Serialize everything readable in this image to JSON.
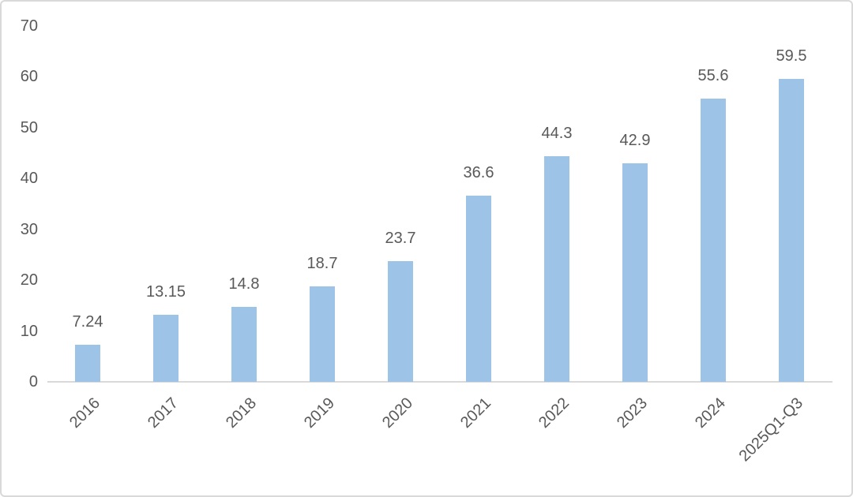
{
  "chart_data": {
    "type": "bar",
    "title": "",
    "xlabel": "",
    "ylabel": "",
    "categories": [
      "2016",
      "2017",
      "2018",
      "2019",
      "2020",
      "2021",
      "2022",
      "2023",
      "2024",
      "2025Q1-Q3"
    ],
    "values": [
      7.24,
      13.15,
      14.8,
      18.7,
      23.7,
      36.6,
      44.3,
      42.9,
      55.6,
      59.5
    ],
    "value_labels": [
      "7.24",
      "13.15",
      "14.8",
      "18.7",
      "23.7",
      "36.6",
      "44.3",
      "42.9",
      "55.6",
      "59.5"
    ],
    "ylim": [
      0,
      70
    ],
    "y_ticks": [
      0,
      10,
      20,
      30,
      40,
      50,
      60,
      70
    ],
    "grid": false,
    "legend": false,
    "x_label_rotation_deg": -45,
    "bar_color": "#9DC3E6",
    "text_color": "#595959",
    "axis_color": "#D9D9D9"
  }
}
